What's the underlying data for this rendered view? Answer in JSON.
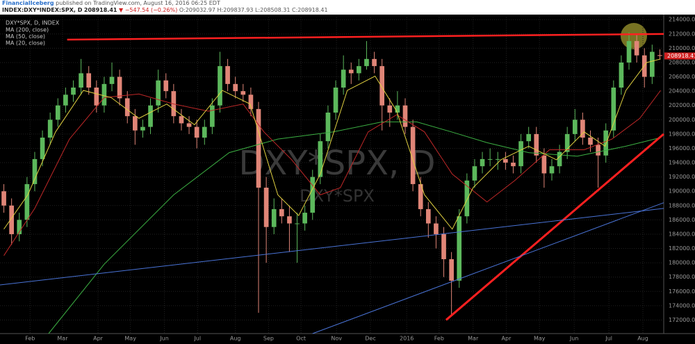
{
  "header": {
    "publisher": "FinancialIceberg",
    "published": "published on TradingView.com, August 16, 2016 06:25 EDT",
    "symbol": "INDEX:DXY*INDEX:SPX, D",
    "price": "208918.41",
    "change": "▼ −547.54 (−0.26%)",
    "ohlc": "O:209032.97 H:209837.93 L:208508.31 C:208918.41"
  },
  "chart_data": {
    "type": "candlestick",
    "name": "DXY*SPX, D, INDEX",
    "watermark": [
      "DXY*SPX, D",
      "DXY*SPX"
    ],
    "up_color": "#5cb85c",
    "down_color": "#e08577",
    "grid": true,
    "xlim": [
      -0.5,
      85.5
    ],
    "ylim": [
      170100,
      214800
    ],
    "xticks": [
      {
        "value": 3.4,
        "label": "Feb"
      },
      {
        "value": 7.6,
        "label": "Mar"
      },
      {
        "value": 12.2,
        "label": "Apr"
      },
      {
        "value": 16.4,
        "label": "May"
      },
      {
        "value": 20.8,
        "label": "Jun"
      },
      {
        "value": 25.1,
        "label": "Jul"
      },
      {
        "value": 30,
        "label": "Aug"
      },
      {
        "value": 34.3,
        "label": "Sep"
      },
      {
        "value": 38.5,
        "label": "Oct"
      },
      {
        "value": 43.1,
        "label": "Nov"
      },
      {
        "value": 47.5,
        "label": "Dec"
      },
      {
        "value": 52.2,
        "label": "2016"
      },
      {
        "value": 56.4,
        "label": "Feb"
      },
      {
        "value": 60.8,
        "label": "Mar"
      },
      {
        "value": 65.1,
        "label": "Apr"
      },
      {
        "value": 69.4,
        "label": "May"
      },
      {
        "value": 73.9,
        "label": "Jun"
      },
      {
        "value": 78.4,
        "label": "Jul"
      },
      {
        "value": 82.8,
        "label": "Aug"
      }
    ],
    "yticks": [
      {
        "value": 172000,
        "label": "172000.00"
      },
      {
        "value": 174000,
        "label": "174000.00"
      },
      {
        "value": 176000,
        "label": "176000.00"
      },
      {
        "value": 178000,
        "label": "178000.00"
      },
      {
        "value": 180000,
        "label": "180000.00"
      },
      {
        "value": 182000,
        "label": "182000.00"
      },
      {
        "value": 184000,
        "label": "184000.00"
      },
      {
        "value": 186000,
        "label": "186000.00"
      },
      {
        "value": 188000,
        "label": "188000.00"
      },
      {
        "value": 190000,
        "label": "190000.00"
      },
      {
        "value": 192000,
        "label": "192000.00"
      },
      {
        "value": 194000,
        "label": "194000.00"
      },
      {
        "value": 196000,
        "label": "196000.00"
      },
      {
        "value": 198000,
        "label": "198000.00"
      },
      {
        "value": 200000,
        "label": "200000.00"
      },
      {
        "value": 202000,
        "label": "202000.00"
      },
      {
        "value": 204000,
        "label": "204000.00"
      },
      {
        "value": 206000,
        "label": "206000.00"
      },
      {
        "value": 208000,
        "label": "208000.00"
      },
      {
        "value": 210000,
        "label": "210000.00"
      },
      {
        "value": 212000,
        "label": "212000.00"
      },
      {
        "value": 214000,
        "label": "214000.00"
      }
    ],
    "last_price": 208918.41,
    "last_color": "#d02020",
    "open": [
      190000,
      188000,
      184000,
      186000,
      191000,
      194500,
      197500,
      200000,
      202000,
      203500,
      204500,
      206500,
      204500,
      202000,
      205000,
      206000,
      203000,
      200500,
      198500,
      199000,
      202000,
      205500,
      204000,
      200500,
      199500,
      199000,
      197500,
      199000,
      202000,
      207500,
      205000,
      204000,
      203500,
      201500,
      190500,
      185000,
      187500,
      186500,
      185500,
      185500,
      187000,
      192000,
      197000,
      201000,
      204500,
      207000,
      206500,
      207500,
      208500,
      207500,
      202000,
      201000,
      202000,
      199000,
      191000,
      187500,
      185500,
      184000,
      180500,
      177500,
      186500,
      191500,
      193500,
      194500,
      194500,
      194500,
      194000,
      193500,
      197000,
      198000,
      195000,
      192500,
      193500,
      195500,
      198000,
      200000,
      197500,
      196500,
      195000,
      198500,
      204500,
      208000,
      211000,
      209000,
      206000,
      209032.97
    ],
    "high": [
      191000,
      189000,
      187000,
      192000,
      195500,
      198500,
      201000,
      203000,
      204500,
      205500,
      208500,
      207500,
      205500,
      206000,
      208000,
      207000,
      204000,
      201500,
      200000,
      203000,
      207000,
      206500,
      205000,
      201500,
      200500,
      200000,
      200000,
      203000,
      209500,
      208500,
      206000,
      205000,
      204500,
      202500,
      192000,
      189000,
      189000,
      188000,
      187000,
      188000,
      193000,
      198000,
      202000,
      205500,
      209000,
      208000,
      208500,
      211000,
      209500,
      208500,
      203000,
      204000,
      203000,
      200000,
      192000,
      188500,
      186500,
      185000,
      181500,
      187500,
      192500,
      194500,
      195500,
      196000,
      195500,
      195500,
      195000,
      198000,
      199000,
      199000,
      196000,
      194500,
      196500,
      199000,
      201500,
      201000,
      198500,
      197500,
      199500,
      205500,
      209000,
      212200,
      212000,
      210000,
      210500,
      209837.93
    ],
    "low": [
      187000,
      182500,
      183000,
      185000,
      190000,
      193500,
      196500,
      199000,
      201000,
      202500,
      203500,
      203500,
      201000,
      201000,
      204000,
      202000,
      199500,
      196500,
      197500,
      198000,
      201000,
      203000,
      199500,
      198500,
      198000,
      196000,
      196500,
      198000,
      201000,
      204000,
      203000,
      202500,
      200500,
      173000,
      180000,
      184000,
      185500,
      181500,
      180000,
      184500,
      186000,
      191000,
      196000,
      200000,
      203500,
      205000,
      205500,
      207000,
      206500,
      198500,
      199000,
      200000,
      198000,
      190000,
      186500,
      183500,
      182000,
      178000,
      172500,
      176500,
      185500,
      190500,
      192500,
      193500,
      193000,
      193000,
      192500,
      192500,
      196000,
      194000,
      190500,
      191500,
      192500,
      194500,
      197000,
      196500,
      195500,
      190500,
      194000,
      197500,
      203500,
      207000,
      208000,
      204500,
      205000,
      208508.31
    ],
    "close": [
      188000,
      184000,
      186000,
      191000,
      194500,
      197500,
      200000,
      202000,
      203500,
      204500,
      206500,
      204500,
      202000,
      205000,
      206000,
      203000,
      200500,
      198500,
      199000,
      202000,
      205500,
      204000,
      200500,
      199500,
      199000,
      197500,
      199000,
      202000,
      207500,
      205000,
      204000,
      203500,
      201500,
      190500,
      185000,
      187500,
      186500,
      185500,
      185500,
      187000,
      192000,
      197000,
      201000,
      204500,
      207000,
      206500,
      207500,
      208500,
      207500,
      202000,
      201000,
      202000,
      199000,
      191000,
      187500,
      185500,
      184000,
      180500,
      177500,
      186500,
      191500,
      193500,
      194500,
      194500,
      194500,
      194000,
      193500,
      197000,
      198000,
      195000,
      192500,
      193500,
      195500,
      198000,
      200000,
      197500,
      196500,
      195000,
      198500,
      204500,
      208000,
      211000,
      209000,
      206000,
      209500,
      208918.41
    ],
    "series": [
      {
        "name": "MA (200, close)",
        "color": "#3cb043",
        "x": [
          5.8,
          13,
          22,
          29.2,
          35.5,
          42.7,
          49,
          53.5,
          58,
          62.6,
          68,
          74.3,
          80.6,
          85.1
        ],
        "values": [
          170100,
          179800,
          189500,
          195400,
          197300,
          198300,
          199700,
          199700,
          198300,
          196800,
          195400,
          194900,
          196300,
          197500
        ]
      },
      {
        "name": "MA (50, close)",
        "color": "#c02828",
        "x": [
          0,
          4,
          8.5,
          13,
          17.5,
          22,
          26.5,
          31,
          33.7,
          37.3,
          41,
          43.6,
          47.2,
          50.9,
          54.5,
          58.1,
          62.6,
          66.2,
          70.7,
          75.2,
          78.8,
          82.4,
          85.1
        ],
        "values": [
          181000,
          187600,
          197300,
          203100,
          203600,
          202200,
          201200,
          202200,
          198300,
          194400,
          189500,
          190500,
          198300,
          200700,
          198300,
          192400,
          188500,
          191500,
          195800,
          195800,
          197300,
          200200,
          204100
        ]
      },
      {
        "name": "MA (20, close)",
        "color": "#e0d040",
        "x": [
          0,
          3.1,
          6.7,
          10.3,
          13.9,
          17.5,
          21.1,
          24.7,
          28.3,
          31.9,
          35.5,
          38.2,
          41,
          44.5,
          48.1,
          50.9,
          54.5,
          58.1,
          60.8,
          64.4,
          68,
          71.6,
          75.2,
          77.9,
          80.6,
          83.3,
          85.1
        ],
        "values": [
          184700,
          189500,
          198300,
          204100,
          203100,
          200200,
          202200,
          199300,
          204100,
          202200,
          189500,
          186600,
          192400,
          204100,
          206100,
          201200,
          189500,
          184700,
          190500,
          194400,
          196300,
          194400,
          198300,
          196300,
          204100,
          208000,
          208500
        ]
      }
    ],
    "drawings": [
      {
        "color": "#ff2020",
        "width": 2.5,
        "x": [
          8.2,
          85.5
        ],
        "values": [
          211200,
          212000
        ]
      },
      {
        "color": "#ff2020",
        "width": 3,
        "x": [
          57.3,
          85.5
        ],
        "values": [
          172000,
          198000
        ]
      },
      {
        "color": "#4a74d8",
        "width": 1,
        "x": [
          -0.5,
          85.5
        ],
        "values": [
          176900,
          187600
        ]
      },
      {
        "color": "#4a74d8",
        "width": 1,
        "x": [
          40,
          85.5
        ],
        "values": [
          170100,
          188400
        ]
      }
    ]
  }
}
